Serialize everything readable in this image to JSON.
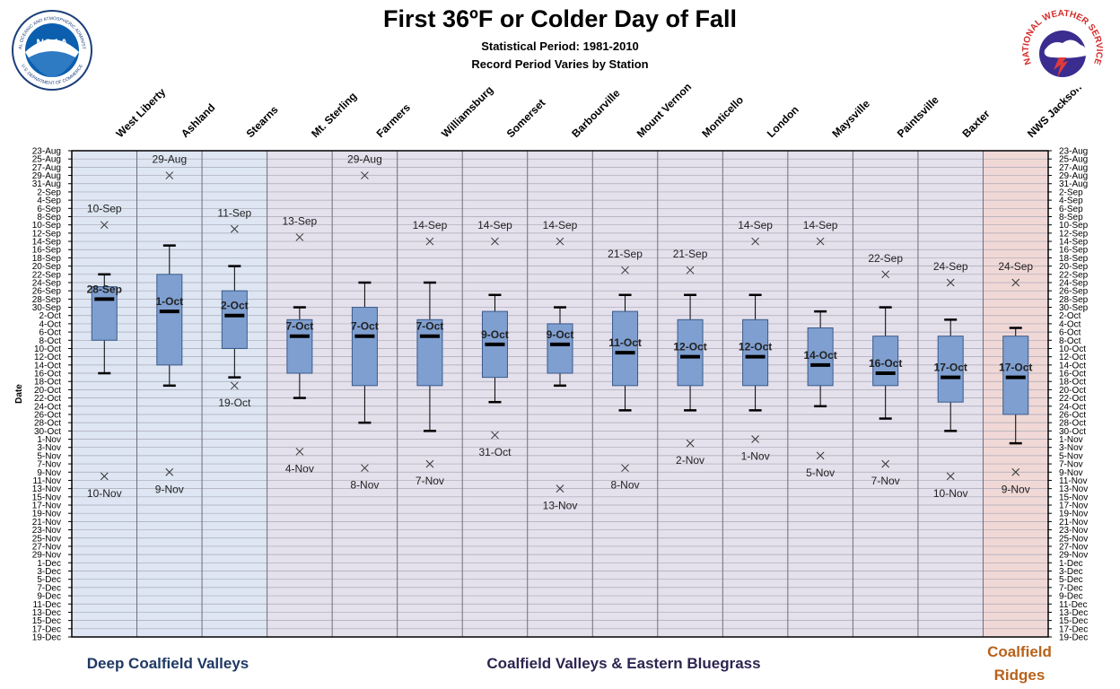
{
  "header": {
    "title": "First 36ºF or Colder Day of Fall",
    "subtitle1": "Statistical Period: 1981-2010",
    "subtitle2": "Record Period Varies by Station"
  },
  "logos": {
    "noaa_text": "NOAA",
    "noaa_ring_top": "NATIONAL OCEANIC AND ATMOSPHERIC ADMINISTRATION",
    "noaa_ring_bottom": "U.S. DEPARTMENT OF COMMERCE",
    "nws_ring": "NATIONAL WEATHER SERVICE"
  },
  "regions": {
    "deep": "Deep Coalfield Valleys",
    "valleys": "Coalfield Valleys & Eastern Bluegrass",
    "ridges_line1": "Coalfield",
    "ridges_line2": "Ridges"
  },
  "colors": {
    "deep_bg": "#dde6f2",
    "valleys_bg": "#e4e0ec",
    "ridges_bg": "#f0d8d6",
    "box_fill": "#7f9fd0",
    "box_stroke": "#3a5a8a",
    "deep_label": "#1f3864",
    "valleys_label": "#2e2450",
    "ridges_label": "#b8621b"
  },
  "chart_data": {
    "type": "box",
    "ylabel": "Date",
    "y_ticks": [
      "23-Aug",
      "25-Aug",
      "27-Aug",
      "29-Aug",
      "31-Aug",
      "2-Sep",
      "4-Sep",
      "6-Sep",
      "8-Sep",
      "10-Sep",
      "12-Sep",
      "14-Sep",
      "16-Sep",
      "18-Sep",
      "20-Sep",
      "22-Sep",
      "24-Sep",
      "26-Sep",
      "28-Sep",
      "30-Sep",
      "2-Oct",
      "4-Oct",
      "6-Oct",
      "8-Oct",
      "10-Oct",
      "12-Oct",
      "14-Oct",
      "16-Oct",
      "18-Oct",
      "20-Oct",
      "22-Oct",
      "24-Oct",
      "26-Oct",
      "28-Oct",
      "30-Oct",
      "1-Nov",
      "3-Nov",
      "5-Nov",
      "7-Nov",
      "9-Nov",
      "11-Nov",
      "13-Nov",
      "15-Nov",
      "17-Nov",
      "19-Nov",
      "21-Nov",
      "23-Nov",
      "25-Nov",
      "27-Nov",
      "29-Nov",
      "1-Dec",
      "3-Dec",
      "5-Dec",
      "7-Dec",
      "9-Dec",
      "11-Dec",
      "13-Dec",
      "15-Dec",
      "17-Dec",
      "19-Dec"
    ],
    "stations": [
      {
        "name": "West Liberty",
        "region": "deep",
        "whisker_low": "22-Sep",
        "q1": "25-Sep",
        "median": "28-Sep",
        "q3": "8-Oct",
        "whisker_high": "16-Oct",
        "record_early": "10-Sep",
        "record_late": "10-Nov",
        "median_label": "28-Sep"
      },
      {
        "name": "Ashland",
        "region": "deep",
        "whisker_low": "15-Sep",
        "q1": "22-Sep",
        "median": "1-Oct",
        "q3": "14-Oct",
        "whisker_high": "19-Oct",
        "record_early": "29-Aug",
        "record_late": "9-Nov",
        "median_label": "1-Oct"
      },
      {
        "name": "Stearns",
        "region": "deep",
        "whisker_low": "20-Sep",
        "q1": "26-Sep",
        "median": "2-Oct",
        "q3": "10-Oct",
        "whisker_high": "17-Oct",
        "record_early": "11-Sep",
        "record_late": "19-Oct",
        "median_label": "2-Oct"
      },
      {
        "name": "Mt. Sterling",
        "region": "valleys",
        "whisker_low": "30-Sep",
        "q1": "3-Oct",
        "median": "7-Oct",
        "q3": "16-Oct",
        "whisker_high": "22-Oct",
        "record_early": "13-Sep",
        "record_late": "4-Nov",
        "median_label": "7-Oct"
      },
      {
        "name": "Farmers",
        "region": "valleys",
        "whisker_low": "24-Sep",
        "q1": "30-Sep",
        "median": "7-Oct",
        "q3": "19-Oct",
        "whisker_high": "28-Oct",
        "record_early": "29-Aug",
        "record_late": "8-Nov",
        "median_label": "7-Oct"
      },
      {
        "name": "Williamsburg",
        "region": "valleys",
        "whisker_low": "24-Sep",
        "q1": "3-Oct",
        "median": "7-Oct",
        "q3": "19-Oct",
        "whisker_high": "30-Oct",
        "record_early": "14-Sep",
        "record_late": "7-Nov",
        "median_label": "7-Oct"
      },
      {
        "name": "Somerset",
        "region": "valleys",
        "whisker_low": "27-Sep",
        "q1": "1-Oct",
        "median": "9-Oct",
        "q3": "17-Oct",
        "whisker_high": "23-Oct",
        "record_early": "14-Sep",
        "record_late": "31-Oct",
        "median_label": "9-Oct"
      },
      {
        "name": "Barbourville",
        "region": "valleys",
        "whisker_low": "30-Sep",
        "q1": "4-Oct",
        "median": "9-Oct",
        "q3": "16-Oct",
        "whisker_high": "19-Oct",
        "record_early": "14-Sep",
        "record_late": "13-Nov",
        "median_label": "9-Oct"
      },
      {
        "name": "Mount Vernon",
        "region": "valleys",
        "whisker_low": "27-Sep",
        "q1": "1-Oct",
        "median": "11-Oct",
        "q3": "19-Oct",
        "whisker_high": "25-Oct",
        "record_early": "21-Sep",
        "record_late": "8-Nov",
        "median_label": "11-Oct"
      },
      {
        "name": "Monticello",
        "region": "valleys",
        "whisker_low": "27-Sep",
        "q1": "3-Oct",
        "median": "12-Oct",
        "q3": "19-Oct",
        "whisker_high": "25-Oct",
        "record_early": "21-Sep",
        "record_late": "2-Nov",
        "median_label": "12-Oct"
      },
      {
        "name": "London",
        "region": "valleys",
        "whisker_low": "27-Sep",
        "q1": "3-Oct",
        "median": "12-Oct",
        "q3": "19-Oct",
        "whisker_high": "25-Oct",
        "record_early": "14-Sep",
        "record_late": "1-Nov",
        "median_label": "12-Oct"
      },
      {
        "name": "Maysville",
        "region": "valleys",
        "whisker_low": "1-Oct",
        "q1": "5-Oct",
        "median": "14-Oct",
        "q3": "19-Oct",
        "whisker_high": "24-Oct",
        "record_early": "14-Sep",
        "record_late": "5-Nov",
        "median_label": "14-Oct"
      },
      {
        "name": "Paintsville",
        "region": "valleys",
        "whisker_low": "30-Sep",
        "q1": "7-Oct",
        "median": "16-Oct",
        "q3": "19-Oct",
        "whisker_high": "27-Oct",
        "record_early": "22-Sep",
        "record_late": "7-Nov",
        "median_label": "16-Oct"
      },
      {
        "name": "Baxter",
        "region": "valleys",
        "whisker_low": "3-Oct",
        "q1": "7-Oct",
        "median": "17-Oct",
        "q3": "23-Oct",
        "whisker_high": "30-Oct",
        "record_early": "24-Sep",
        "record_late": "10-Nov",
        "median_label": "17-Oct"
      },
      {
        "name": "NWS Jackson",
        "region": "ridges",
        "whisker_low": "5-Oct",
        "q1": "7-Oct",
        "median": "17-Oct",
        "q3": "26-Oct",
        "whisker_high": "2-Nov",
        "record_early": "24-Sep",
        "record_late": "9-Nov",
        "median_label": "17-Oct"
      }
    ]
  }
}
